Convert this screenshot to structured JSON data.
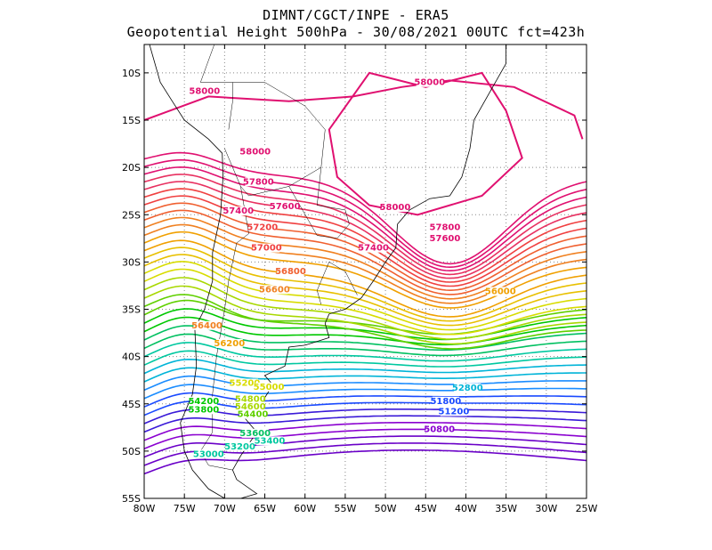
{
  "header": {
    "line1": "DIMNT/CGCT/INPE -  ERA5",
    "line2": "Geopotential Height 500hPa -  30/08/2021 00UTC fct=423h"
  },
  "axes": {
    "lon_labels": [
      "80W",
      "75W",
      "70W",
      "65W",
      "60W",
      "55W",
      "50W",
      "45W",
      "40W",
      "35W",
      "30W",
      "25W"
    ],
    "lat_labels": [
      "10S",
      "15S",
      "20S",
      "25S",
      "30S",
      "35S",
      "40S",
      "45S",
      "50S",
      "55S"
    ],
    "lon_values": [
      -80,
      -75,
      -70,
      -65,
      -60,
      -55,
      -50,
      -45,
      -40,
      -35,
      -30,
      -25
    ],
    "lat_values": [
      -10,
      -15,
      -20,
      -25,
      -30,
      -35,
      -40,
      -45,
      -50,
      -55
    ],
    "lon_range": [
      -80,
      -25
    ],
    "lat_range": [
      -55,
      -7
    ],
    "grid": "dotted"
  },
  "colors": {
    "palette": [
      "#6a00c8",
      "#8a00d0",
      "#3a1ad8",
      "#1a4aff",
      "#1a8cff",
      "#00b4d8",
      "#00c8a0",
      "#00c060",
      "#00c800",
      "#60d000",
      "#a8d800",
      "#d8dc00",
      "#e8c000",
      "#f0a000",
      "#f08020",
      "#f06030",
      "#f04040",
      "#e83060",
      "#e01070"
    ]
  },
  "contours": {
    "interval_m": 20,
    "range_m": [
      50600,
      58000
    ],
    "labels": [
      {
        "text": "58000",
        "lon": -72.5,
        "lat": -12.2,
        "color": "#e01070"
      },
      {
        "text": "58000",
        "lon": -44.5,
        "lat": -11.3,
        "color": "#e01070"
      },
      {
        "text": "58000",
        "lon": -66.2,
        "lat": -18.6,
        "color": "#e01070"
      },
      {
        "text": "58000",
        "lon": -48.8,
        "lat": -24.5,
        "color": "#e01070"
      },
      {
        "text": "57800",
        "lon": -65.8,
        "lat": -21.8,
        "color": "#e01070"
      },
      {
        "text": "57800",
        "lon": -42.6,
        "lat": -26.6,
        "color": "#e01070"
      },
      {
        "text": "57600",
        "lon": -62.5,
        "lat": -24.4,
        "color": "#e01070"
      },
      {
        "text": "57600",
        "lon": -42.6,
        "lat": -27.8,
        "color": "#e01070"
      },
      {
        "text": "57400",
        "lon": -68.3,
        "lat": -24.9,
        "color": "#e01070"
      },
      {
        "text": "57400",
        "lon": -51.5,
        "lat": -28.8,
        "color": "#e01070"
      },
      {
        "text": "57200",
        "lon": -65.3,
        "lat": -26.6,
        "color": "#f04040"
      },
      {
        "text": "57000",
        "lon": -64.8,
        "lat": -28.8,
        "color": "#f04040"
      },
      {
        "text": "56800",
        "lon": -61.8,
        "lat": -31.3,
        "color": "#f06030"
      },
      {
        "text": "56600",
        "lon": -63.8,
        "lat": -33.2,
        "color": "#f08020"
      },
      {
        "text": "56400",
        "lon": -72.2,
        "lat": -37.0,
        "color": "#f08020"
      },
      {
        "text": "56200",
        "lon": -69.4,
        "lat": -38.9,
        "color": "#f0a000"
      },
      {
        "text": "56000",
        "lon": -35.7,
        "lat": -33.4,
        "color": "#f0a000"
      },
      {
        "text": "55200",
        "lon": -67.5,
        "lat": -43.1,
        "color": "#d8dc00"
      },
      {
        "text": "55000",
        "lon": -64.5,
        "lat": -43.5,
        "color": "#d8dc00"
      },
      {
        "text": "54800",
        "lon": -66.8,
        "lat": -44.8,
        "color": "#a8d800"
      },
      {
        "text": "54600",
        "lon": -66.8,
        "lat": -45.6,
        "color": "#a8d800"
      },
      {
        "text": "54400",
        "lon": -66.5,
        "lat": -46.4,
        "color": "#60d000"
      },
      {
        "text": "54200",
        "lon": -72.6,
        "lat": -45.0,
        "color": "#00c800"
      },
      {
        "text": "53800",
        "lon": -72.6,
        "lat": -45.9,
        "color": "#00c800"
      },
      {
        "text": "53600",
        "lon": -66.2,
        "lat": -48.4,
        "color": "#00c060"
      },
      {
        "text": "53400",
        "lon": -64.4,
        "lat": -49.2,
        "color": "#00c8a0"
      },
      {
        "text": "53200",
        "lon": -68.1,
        "lat": -49.8,
        "color": "#00c8a0"
      },
      {
        "text": "53000",
        "lon": -72.0,
        "lat": -50.6,
        "color": "#00c8a0"
      },
      {
        "text": "52800",
        "lon": -39.8,
        "lat": -43.6,
        "color": "#00b4d8"
      },
      {
        "text": "51800",
        "lon": -42.5,
        "lat": -45.0,
        "color": "#1a4aff"
      },
      {
        "text": "51200",
        "lon": -41.5,
        "lat": -46.1,
        "color": "#1a4aff"
      },
      {
        "text": "50800",
        "lon": -43.3,
        "lat": -48.0,
        "color": "#8a00d0"
      }
    ]
  }
}
